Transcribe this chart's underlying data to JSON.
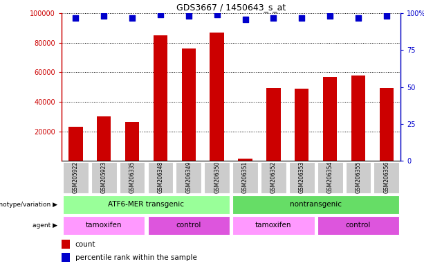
{
  "title": "GDS3667 / 1450643_s_at",
  "samples": [
    "GSM205922",
    "GSM205923",
    "GSM206335",
    "GSM206348",
    "GSM206349",
    "GSM206350",
    "GSM206351",
    "GSM206352",
    "GSM206353",
    "GSM206354",
    "GSM206355",
    "GSM206356"
  ],
  "counts": [
    23000,
    30000,
    26500,
    85000,
    76000,
    87000,
    1500,
    49500,
    49000,
    57000,
    58000,
    49500
  ],
  "percentile_ranks": [
    97,
    98,
    97,
    99,
    98,
    99,
    96,
    97,
    97,
    98,
    97,
    98
  ],
  "ylim_left": [
    0,
    100000
  ],
  "ylim_right": [
    0,
    100
  ],
  "yticks_left": [
    20000,
    40000,
    60000,
    80000,
    100000
  ],
  "ytick_labels_left": [
    "20000",
    "40000",
    "60000",
    "80000",
    "100000"
  ],
  "yticks_right": [
    0,
    25,
    50,
    75,
    100
  ],
  "ytick_labels_right": [
    "0",
    "25",
    "50",
    "75",
    "100%"
  ],
  "bar_color": "#cc0000",
  "dot_color": "#0000cc",
  "genotype_groups": [
    {
      "label": "ATF6-MER transgenic",
      "start": 0,
      "end": 5,
      "color": "#99ff99"
    },
    {
      "label": "nontransgenic",
      "start": 6,
      "end": 11,
      "color": "#66dd66"
    }
  ],
  "agent_groups": [
    {
      "label": "tamoxifen",
      "start": 0,
      "end": 2,
      "color": "#ff99ff"
    },
    {
      "label": "control",
      "start": 3,
      "end": 5,
      "color": "#dd55dd"
    },
    {
      "label": "tamoxifen",
      "start": 6,
      "end": 8,
      "color": "#ff99ff"
    },
    {
      "label": "control",
      "start": 9,
      "end": 11,
      "color": "#dd55dd"
    }
  ],
  "genotype_label": "genotype/variation",
  "agent_label": "agent",
  "legend_count_label": "count",
  "legend_percentile_label": "percentile rank within the sample",
  "bar_width": 0.5,
  "dot_size": 40,
  "xlabel_bg_color": "#cccccc",
  "xlabel_border_color": "#888888"
}
